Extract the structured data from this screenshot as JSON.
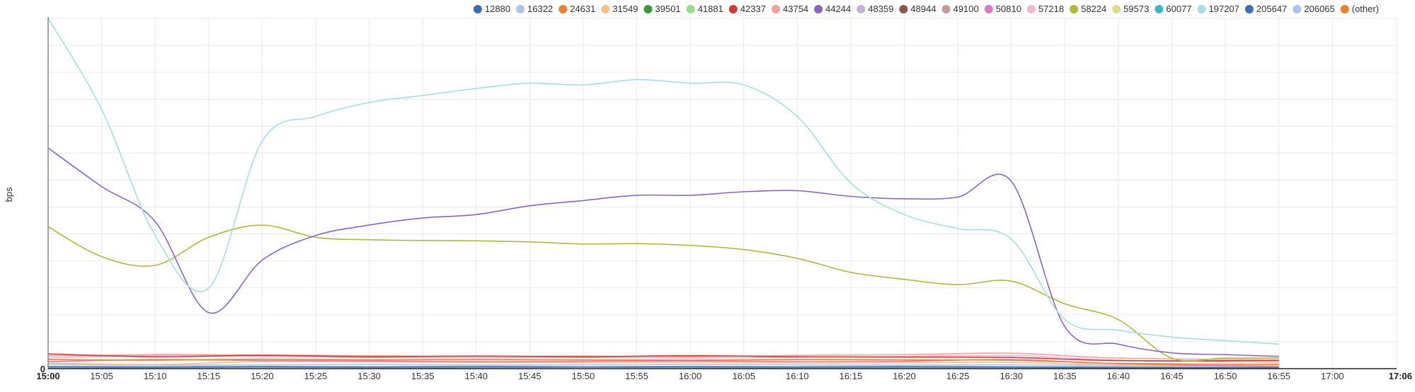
{
  "chart_data": {
    "type": "line",
    "ylabel": "bps",
    "y_zero_label": "0",
    "grid": true,
    "legend_position": "top-right",
    "x_axis": {
      "start": "15:00",
      "end": "17:06",
      "tick_labels": [
        "15:00",
        "15:05",
        "15:10",
        "15:15",
        "15:20",
        "15:25",
        "15:30",
        "15:35",
        "15:40",
        "15:45",
        "15:50",
        "15:55",
        "16:00",
        "16:05",
        "16:10",
        "16:15",
        "16:20",
        "16:25",
        "16:30",
        "16:35",
        "16:40",
        "16:45",
        "16:50",
        "16:55",
        "17:00",
        "17:06"
      ],
      "bold_labels": [
        "15:00",
        "17:06"
      ]
    },
    "ylim": [
      0,
      100
    ],
    "legend": [
      {
        "name": "12880",
        "color": "#3a6fb5"
      },
      {
        "name": "16322",
        "color": "#aec4e8"
      },
      {
        "name": "24631",
        "color": "#f07f2c"
      },
      {
        "name": "31549",
        "color": "#f6c087"
      },
      {
        "name": "39501",
        "color": "#3a9a3a"
      },
      {
        "name": "41881",
        "color": "#98df8a"
      },
      {
        "name": "42337",
        "color": "#d03a33"
      },
      {
        "name": "43754",
        "color": "#f4a19c"
      },
      {
        "name": "44244",
        "color": "#8a67bf"
      },
      {
        "name": "48359",
        "color": "#c3b2d8"
      },
      {
        "name": "48944",
        "color": "#8b564b"
      },
      {
        "name": "49100",
        "color": "#c49c94"
      },
      {
        "name": "50810",
        "color": "#d979c5"
      },
      {
        "name": "57218",
        "color": "#f6b6d2"
      },
      {
        "name": "58224",
        "color": "#b2b83a"
      },
      {
        "name": "59573",
        "color": "#dbdb8d"
      },
      {
        "name": "60077",
        "color": "#3fb8c9"
      },
      {
        "name": "197207",
        "color": "#a8dde6"
      },
      {
        "name": "205647",
        "color": "#3a6fb5"
      },
      {
        "name": "206065",
        "color": "#aec4e8"
      },
      {
        "name": "(other)",
        "color": "#f07f2c"
      }
    ],
    "series": [
      {
        "name": "197207",
        "color": "#a8dde6",
        "x": [
          "15:00",
          "15:05",
          "15:10",
          "15:15",
          "15:20",
          "15:25",
          "15:30",
          "15:35",
          "15:40",
          "15:45",
          "15:50",
          "15:55",
          "16:00",
          "16:05",
          "16:10",
          "16:15",
          "16:20",
          "16:25",
          "16:30",
          "16:35",
          "16:40",
          "16:45",
          "16:50",
          "16:55"
        ],
        "values": [
          100,
          74,
          38,
          23,
          65,
          72,
          76,
          78,
          80,
          81.5,
          81,
          82.5,
          81.5,
          81,
          72,
          53,
          44,
          40,
          37,
          14,
          11,
          9,
          8,
          7
        ]
      },
      {
        "name": "44244",
        "color": "#8a67bf",
        "x": [
          "15:00",
          "15:05",
          "15:10",
          "15:15",
          "15:20",
          "15:25",
          "15:30",
          "15:35",
          "15:40",
          "15:45",
          "15:50",
          "15:55",
          "16:00",
          "16:05",
          "16:10",
          "16:15",
          "16:20",
          "16:25",
          "16:30",
          "16:35",
          "16:40",
          "16:45",
          "16:50",
          "16:55"
        ],
        "values": [
          63,
          52,
          42,
          16,
          31,
          38,
          41,
          43,
          44,
          46.5,
          48,
          49.5,
          49.5,
          50.5,
          50.8,
          49.2,
          48.5,
          49,
          53.5,
          12,
          7,
          4.5,
          4,
          3.5
        ]
      },
      {
        "name": "58224",
        "color": "#b2b83a",
        "x": [
          "15:00",
          "15:05",
          "15:10",
          "15:15",
          "15:20",
          "15:25",
          "15:30",
          "15:35",
          "15:40",
          "15:45",
          "15:50",
          "15:55",
          "16:00",
          "16:05",
          "16:10",
          "16:15",
          "16:20",
          "16:25",
          "16:30",
          "16:35",
          "16:40",
          "16:45",
          "16:50",
          "16:55"
        ],
        "values": [
          40.5,
          32,
          29.5,
          37.5,
          41,
          37.5,
          36.8,
          36.6,
          36.5,
          36.2,
          35.6,
          35.7,
          35.2,
          34,
          31.5,
          27.5,
          25.5,
          24,
          25,
          18.5,
          14,
          3,
          3,
          3
        ]
      },
      {
        "name": "42337",
        "color": "#d03a33",
        "x": [
          "15:00",
          "15:10",
          "15:20",
          "15:30",
          "15:40",
          "15:50",
          "16:00",
          "16:10",
          "16:20",
          "16:30",
          "16:40",
          "16:55"
        ],
        "values": [
          4.2,
          3.4,
          3.8,
          3.4,
          3.6,
          3.4,
          3.7,
          3.4,
          3.3,
          3.2,
          2.3,
          2.3
        ]
      },
      {
        "name": "43754",
        "color": "#f4a19c",
        "x": [
          "15:00",
          "15:10",
          "15:20",
          "15:30",
          "15:40",
          "15:50",
          "16:00",
          "16:10",
          "16:20",
          "16:30",
          "16:40",
          "16:55"
        ],
        "values": [
          3.6,
          4.0,
          3.9,
          3.7,
          3.5,
          3.6,
          3.4,
          3.8,
          4.0,
          4.4,
          3.0,
          2.5
        ]
      },
      {
        "name": "57218",
        "color": "#f6b6d2",
        "x": [
          "15:00",
          "15:10",
          "15:20",
          "15:30",
          "15:40",
          "15:50",
          "16:00",
          "16:10",
          "16:20",
          "16:30",
          "16:40",
          "16:55"
        ],
        "values": [
          3.0,
          3.8,
          3.5,
          3.2,
          3.1,
          3.2,
          3.0,
          3.3,
          3.5,
          3.8,
          2.4,
          1.8
        ]
      },
      {
        "name": "24631",
        "color": "#f07f2c",
        "x": [
          "15:00",
          "15:10",
          "15:20",
          "15:30",
          "15:40",
          "15:50",
          "16:00",
          "16:10",
          "16:20",
          "16:30",
          "16:40",
          "16:55"
        ],
        "values": [
          2.6,
          2.4,
          2.7,
          2.5,
          2.6,
          2.5,
          2.4,
          2.6,
          2.5,
          2.4,
          1.5,
          1.2
        ]
      },
      {
        "name": "50810",
        "color": "#d979c5",
        "x": [
          "15:00",
          "15:10",
          "15:20",
          "15:30",
          "15:40",
          "15:50",
          "16:00",
          "16:10",
          "16:20",
          "16:30",
          "16:40",
          "16:55"
        ],
        "values": [
          2.0,
          2.6,
          2.3,
          2.2,
          2.0,
          2.1,
          2.2,
          2.0,
          2.1,
          2.6,
          1.4,
          0.6
        ]
      },
      {
        "name": "31549",
        "color": "#f6c087",
        "x": [
          "15:00",
          "15:10",
          "15:20",
          "15:30",
          "15:40",
          "15:50",
          "16:00",
          "16:10",
          "16:20",
          "16:30",
          "16:40",
          "16:55"
        ],
        "values": [
          1.6,
          1.2,
          2.0,
          1.9,
          1.8,
          1.7,
          1.8,
          1.6,
          1.7,
          1.8,
          1.0,
          0.8
        ]
      },
      {
        "name": "16322",
        "color": "#aec4e8",
        "x": [
          "15:00",
          "15:10",
          "15:20",
          "15:30",
          "15:40",
          "15:50",
          "16:00",
          "16:10",
          "16:20",
          "16:30",
          "16:40",
          "16:55"
        ],
        "values": [
          1.2,
          1.0,
          1.1,
          1.2,
          1.0,
          1.1,
          1.2,
          1.1,
          1.0,
          1.1,
          0.8,
          0.7
        ]
      },
      {
        "name": "12880",
        "color": "#3a6fb5",
        "x": [
          "15:00",
          "15:10",
          "15:20",
          "15:30",
          "15:40",
          "15:50",
          "16:00",
          "16:10",
          "16:20",
          "16:30",
          "16:40",
          "16:55"
        ],
        "values": [
          0.6,
          0.5,
          0.6,
          0.5,
          0.6,
          0.5,
          0.6,
          0.5,
          0.6,
          0.5,
          0.4,
          0.3
        ]
      },
      {
        "name": "60077",
        "color": "#3fb8c9",
        "x": [
          "15:00",
          "15:10",
          "15:20",
          "15:30",
          "15:40",
          "15:50",
          "16:00",
          "16:10",
          "16:20",
          "16:30",
          "16:40",
          "16:55"
        ],
        "values": [
          0.3,
          0.3,
          0.4,
          0.3,
          0.3,
          0.4,
          0.3,
          0.3,
          0.3,
          0.3,
          0.2,
          0.2
        ]
      }
    ]
  }
}
